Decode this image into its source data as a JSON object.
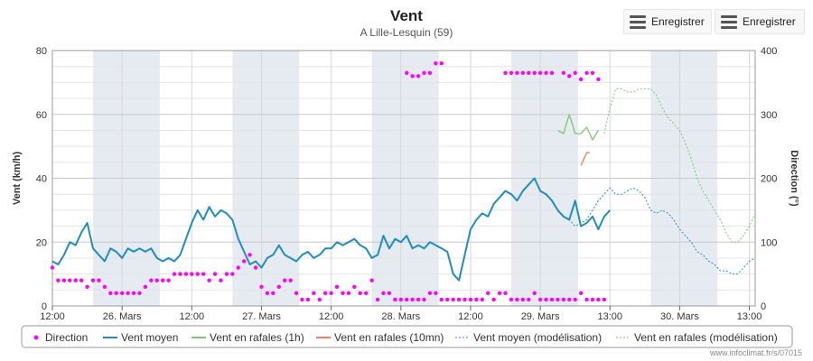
{
  "header": {
    "title": "Vent",
    "subtitle": "A Lille-Lesquin (59)"
  },
  "toolbar": {
    "export_button_1": "Enregistrer",
    "export_button_2": "Enregistrer",
    "menu_icon": "hamburger-menu-icon"
  },
  "credit": "www.infoclimat.fr/s/07015",
  "chart_data": {
    "type": "line",
    "x_axis": {
      "unit": "hours since first tick",
      "range": [
        0,
        121
      ],
      "ticks": [
        {
          "x": 0,
          "label": "12:00"
        },
        {
          "x": 12,
          "label": "26. Mars"
        },
        {
          "x": 24,
          "label": "12:00"
        },
        {
          "x": 36,
          "label": "27. Mars"
        },
        {
          "x": 48,
          "label": "12:00"
        },
        {
          "x": 60,
          "label": "28. Mars"
        },
        {
          "x": 72,
          "label": "12:00"
        },
        {
          "x": 84,
          "label": "29. Mars"
        },
        {
          "x": 96,
          "label": "13:00"
        },
        {
          "x": 108,
          "label": "30. Mars"
        },
        {
          "x": 120,
          "label": "13:00"
        }
      ],
      "night_bands": [
        [
          7,
          18.5
        ],
        [
          31,
          42.5
        ],
        [
          55,
          66.5
        ],
        [
          79,
          90.5
        ],
        [
          103,
          114.5
        ]
      ]
    },
    "y_left": {
      "label": "Vent (km/h)",
      "range": [
        0,
        80
      ],
      "ticks": [
        0,
        20,
        40,
        60,
        80
      ]
    },
    "y_right": {
      "label": "Direction (°)",
      "range": [
        0,
        400
      ],
      "ticks": [
        0,
        100,
        200,
        300,
        400
      ]
    },
    "grid": true,
    "legend_position": "bottom",
    "series": [
      {
        "name": "Direction",
        "kind": "scatter",
        "axis": "right",
        "color": "#ff00ff",
        "points": [
          [
            0,
            60
          ],
          [
            1,
            40
          ],
          [
            2,
            40
          ],
          [
            3,
            40
          ],
          [
            4,
            40
          ],
          [
            5,
            40
          ],
          [
            6,
            30
          ],
          [
            7,
            40
          ],
          [
            8,
            40
          ],
          [
            9,
            30
          ],
          [
            10,
            20
          ],
          [
            11,
            20
          ],
          [
            12,
            20
          ],
          [
            13,
            20
          ],
          [
            14,
            20
          ],
          [
            15,
            20
          ],
          [
            16,
            30
          ],
          [
            17,
            40
          ],
          [
            18,
            40
          ],
          [
            19,
            40
          ],
          [
            20,
            40
          ],
          [
            21,
            50
          ],
          [
            22,
            50
          ],
          [
            23,
            50
          ],
          [
            24,
            50
          ],
          [
            25,
            50
          ],
          [
            26,
            50
          ],
          [
            27,
            40
          ],
          [
            28,
            50
          ],
          [
            29,
            40
          ],
          [
            30,
            50
          ],
          [
            31,
            50
          ],
          [
            32,
            60
          ],
          [
            33,
            70
          ],
          [
            34,
            80
          ],
          [
            35,
            60
          ],
          [
            36,
            30
          ],
          [
            37,
            20
          ],
          [
            38,
            20
          ],
          [
            39,
            30
          ],
          [
            40,
            40
          ],
          [
            41,
            40
          ],
          [
            42,
            20
          ],
          [
            43,
            10
          ],
          [
            44,
            10
          ],
          [
            45,
            20
          ],
          [
            46,
            10
          ],
          [
            47,
            20
          ],
          [
            48,
            20
          ],
          [
            49,
            30
          ],
          [
            50,
            20
          ],
          [
            51,
            20
          ],
          [
            52,
            30
          ],
          [
            53,
            20
          ],
          [
            54,
            20
          ],
          [
            55,
            40
          ],
          [
            56,
            10
          ],
          [
            57,
            20
          ],
          [
            58,
            20
          ],
          [
            59,
            10
          ],
          [
            60,
            10
          ],
          [
            61,
            10
          ],
          [
            62,
            10
          ],
          [
            63,
            10
          ],
          [
            64,
            10
          ],
          [
            65,
            20
          ],
          [
            66,
            20
          ],
          [
            67,
            10
          ],
          [
            68,
            10
          ],
          [
            69,
            10
          ],
          [
            70,
            10
          ],
          [
            71,
            10
          ],
          [
            72,
            10
          ],
          [
            73,
            10
          ],
          [
            74,
            10
          ],
          [
            75,
            20
          ],
          [
            76,
            10
          ],
          [
            77,
            20
          ],
          [
            78,
            20
          ],
          [
            79,
            10
          ],
          [
            80,
            10
          ],
          [
            81,
            10
          ],
          [
            82,
            10
          ],
          [
            83,
            20
          ],
          [
            84,
            10
          ],
          [
            85,
            10
          ],
          [
            86,
            10
          ],
          [
            87,
            10
          ],
          [
            88,
            10
          ],
          [
            89,
            10
          ],
          [
            90,
            10
          ],
          [
            91,
            20
          ],
          [
            92,
            10
          ],
          [
            93,
            10
          ],
          [
            94,
            10
          ],
          [
            95,
            10
          ],
          [
            61,
            365
          ],
          [
            62,
            360
          ],
          [
            63,
            360
          ],
          [
            64,
            365
          ],
          [
            65,
            365
          ],
          [
            66,
            380
          ],
          [
            67,
            380
          ],
          [
            78,
            365
          ],
          [
            79,
            365
          ],
          [
            80,
            365
          ],
          [
            81,
            365
          ],
          [
            82,
            365
          ],
          [
            83,
            365
          ],
          [
            84,
            365
          ],
          [
            85,
            365
          ],
          [
            86,
            365
          ],
          [
            88,
            365
          ],
          [
            89,
            360
          ],
          [
            90,
            365
          ],
          [
            91,
            355
          ],
          [
            92,
            365
          ],
          [
            93,
            365
          ],
          [
            94,
            355
          ]
        ]
      },
      {
        "name": "Vent moyen",
        "kind": "line",
        "axis": "left",
        "color": "#1f8dc0",
        "points": [
          [
            0,
            14
          ],
          [
            1,
            13
          ],
          [
            2,
            16
          ],
          [
            3,
            20
          ],
          [
            4,
            19
          ],
          [
            5,
            23
          ],
          [
            6,
            26
          ],
          [
            7,
            18
          ],
          [
            8,
            16
          ],
          [
            9,
            14
          ],
          [
            10,
            18
          ],
          [
            11,
            17
          ],
          [
            12,
            15
          ],
          [
            13,
            18
          ],
          [
            14,
            17
          ],
          [
            15,
            18
          ],
          [
            16,
            17
          ],
          [
            17,
            18
          ],
          [
            18,
            15
          ],
          [
            19,
            14
          ],
          [
            20,
            15
          ],
          [
            21,
            14
          ],
          [
            22,
            16
          ],
          [
            23,
            21
          ],
          [
            24,
            26
          ],
          [
            25,
            30
          ],
          [
            26,
            27
          ],
          [
            27,
            31
          ],
          [
            28,
            28
          ],
          [
            29,
            30
          ],
          [
            30,
            29
          ],
          [
            31,
            27
          ],
          [
            32,
            21
          ],
          [
            33,
            17
          ],
          [
            34,
            13
          ],
          [
            35,
            14
          ],
          [
            36,
            12
          ],
          [
            37,
            15
          ],
          [
            38,
            16
          ],
          [
            39,
            19
          ],
          [
            40,
            16
          ],
          [
            41,
            15
          ],
          [
            42,
            14
          ],
          [
            43,
            16
          ],
          [
            44,
            17
          ],
          [
            45,
            15
          ],
          [
            46,
            16
          ],
          [
            47,
            18
          ],
          [
            48,
            18
          ],
          [
            49,
            20
          ],
          [
            50,
            19
          ],
          [
            51,
            20
          ],
          [
            52,
            21
          ],
          [
            53,
            19
          ],
          [
            54,
            18
          ],
          [
            55,
            15
          ],
          [
            56,
            16
          ],
          [
            57,
            22
          ],
          [
            58,
            18
          ],
          [
            59,
            21
          ],
          [
            60,
            20
          ],
          [
            61,
            22
          ],
          [
            62,
            18
          ],
          [
            63,
            19
          ],
          [
            64,
            18
          ],
          [
            65,
            20
          ],
          [
            66,
            19
          ],
          [
            67,
            18
          ],
          [
            68,
            17
          ],
          [
            69,
            10
          ],
          [
            70,
            8
          ],
          [
            71,
            16
          ],
          [
            72,
            24
          ],
          [
            73,
            27
          ],
          [
            74,
            29
          ],
          [
            75,
            28
          ],
          [
            76,
            32
          ],
          [
            77,
            34
          ],
          [
            78,
            36
          ],
          [
            79,
            35
          ],
          [
            80,
            33
          ],
          [
            81,
            36
          ],
          [
            82,
            38
          ],
          [
            83,
            40
          ],
          [
            84,
            36
          ],
          [
            85,
            35
          ],
          [
            86,
            33
          ],
          [
            87,
            30
          ],
          [
            88,
            28
          ],
          [
            89,
            27
          ],
          [
            90,
            33
          ],
          [
            91,
            25
          ],
          [
            92,
            26
          ],
          [
            93,
            28
          ],
          [
            94,
            24
          ],
          [
            95,
            28
          ],
          [
            96,
            30
          ]
        ]
      },
      {
        "name": "Vent en rafales (1h)",
        "kind": "line",
        "axis": "left",
        "color": "#7bc86c",
        "points": [
          [
            87,
            55
          ],
          [
            88,
            54
          ],
          [
            89,
            60
          ],
          [
            90,
            54
          ],
          [
            91,
            54
          ],
          [
            92,
            56
          ],
          [
            93,
            52
          ],
          [
            94,
            55
          ]
        ]
      },
      {
        "name": "Vent en rafales (10mn)",
        "kind": "line",
        "axis": "left",
        "color": "#f07d5d",
        "points": [
          [
            91,
            44
          ],
          [
            92,
            48
          ],
          [
            92.5,
            48
          ]
        ]
      },
      {
        "name": "Vent moyen (modélisation)",
        "kind": "line",
        "dashed": true,
        "axis": "left",
        "color": "#1f8dc0",
        "points": [
          [
            87,
            30
          ],
          [
            88,
            28
          ],
          [
            89,
            27
          ],
          [
            90,
            25
          ],
          [
            91,
            26
          ],
          [
            92,
            27
          ],
          [
            93,
            30
          ],
          [
            94,
            33
          ],
          [
            95,
            35
          ],
          [
            96,
            37
          ],
          [
            97,
            35
          ],
          [
            98,
            35
          ],
          [
            99,
            36
          ],
          [
            100,
            37
          ],
          [
            101,
            36
          ],
          [
            102,
            34
          ],
          [
            103,
            30
          ],
          [
            104,
            29
          ],
          [
            105,
            30
          ],
          [
            106,
            29
          ],
          [
            107,
            27
          ],
          [
            108,
            24
          ],
          [
            109,
            22
          ],
          [
            110,
            20
          ],
          [
            111,
            17
          ],
          [
            112,
            16
          ],
          [
            113,
            14
          ],
          [
            114,
            13
          ],
          [
            115,
            11
          ],
          [
            116,
            11
          ],
          [
            117,
            10
          ],
          [
            118,
            10
          ],
          [
            119,
            12
          ],
          [
            120,
            14
          ],
          [
            121,
            15
          ]
        ]
      },
      {
        "name": "Vent en rafales (modélisation)",
        "kind": "line",
        "dashed": true,
        "axis": "left",
        "color": "#7bc86c",
        "points": [
          [
            95,
            54
          ],
          [
            96,
            62
          ],
          [
            97,
            68
          ],
          [
            98,
            68
          ],
          [
            99,
            67
          ],
          [
            100,
            67
          ],
          [
            101,
            68
          ],
          [
            102,
            68
          ],
          [
            103,
            68
          ],
          [
            104,
            66
          ],
          [
            105,
            62
          ],
          [
            106,
            59
          ],
          [
            107,
            57
          ],
          [
            108,
            55
          ],
          [
            109,
            51
          ],
          [
            110,
            46
          ],
          [
            111,
            40
          ],
          [
            112,
            36
          ],
          [
            113,
            33
          ],
          [
            114,
            30
          ],
          [
            115,
            27
          ],
          [
            116,
            23
          ],
          [
            117,
            20
          ],
          [
            118,
            20
          ],
          [
            119,
            22
          ],
          [
            120,
            25
          ],
          [
            121,
            29
          ]
        ]
      }
    ]
  }
}
